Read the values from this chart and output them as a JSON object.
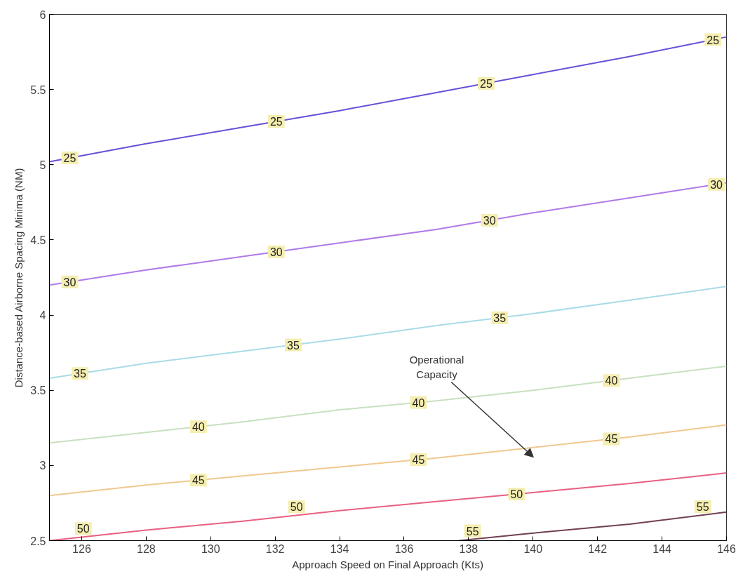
{
  "chart_data": {
    "type": "line",
    "xlabel": "Approach Speed on Final Approach (Kts)",
    "ylabel": "Distance-based Airborne Spacing Minima (NM)",
    "x": [
      125,
      128,
      131,
      134,
      137,
      140,
      143,
      146
    ],
    "xlim": [
      125,
      146
    ],
    "xticks": [
      126,
      128,
      130,
      132,
      134,
      136,
      138,
      140,
      142,
      144,
      146
    ],
    "ylim": [
      2.5,
      6
    ],
    "yticks": [
      2.5,
      3,
      3.5,
      4,
      4.5,
      5,
      5.5,
      6
    ],
    "grid": false,
    "legend": false,
    "line_style": "solid",
    "series": [
      {
        "name": "25",
        "color": "#6a50d8",
        "values": [
          5.02,
          5.14,
          5.25,
          5.36,
          5.48,
          5.6,
          5.72,
          5.85
        ]
      },
      {
        "name": "30",
        "color": "#b07ae8",
        "values": [
          4.2,
          4.3,
          4.39,
          4.48,
          4.57,
          4.68,
          4.78,
          4.88
        ]
      },
      {
        "name": "35",
        "color": "#a8dce8",
        "values": [
          3.58,
          3.68,
          3.76,
          3.84,
          3.93,
          4.01,
          4.1,
          4.19
        ]
      },
      {
        "name": "40",
        "color": "#c8e0c0",
        "values": [
          3.15,
          3.22,
          3.29,
          3.37,
          3.43,
          3.5,
          3.58,
          3.66
        ]
      },
      {
        "name": "45",
        "color": "#f0c890",
        "values": [
          2.8,
          2.87,
          2.93,
          2.99,
          3.05,
          3.12,
          3.19,
          3.27
        ]
      },
      {
        "name": "50",
        "color": "#e86080",
        "values": [
          2.5,
          2.57,
          2.63,
          2.7,
          2.76,
          2.82,
          2.88,
          2.95
        ]
      },
      {
        "name": "55",
        "color": "#704050",
        "x": [
          137.7,
          140,
          143,
          146
        ],
        "values": [
          2.5,
          2.55,
          2.61,
          2.69
        ]
      }
    ],
    "annotations": [
      "Operational\nCapacity"
    ]
  }
}
